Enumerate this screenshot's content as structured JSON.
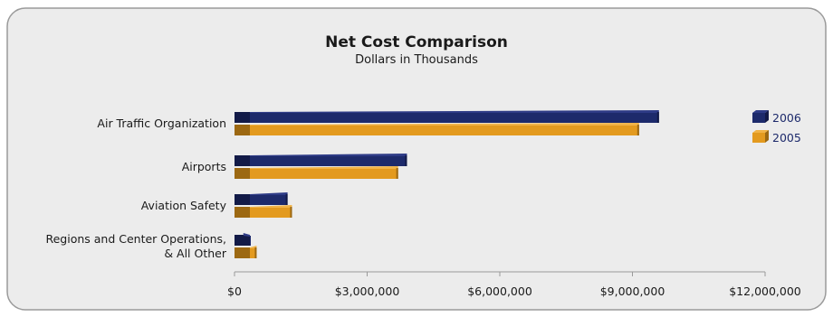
{
  "chart_data": {
    "type": "bar",
    "orientation": "horizontal",
    "title": "Net Cost Comparison",
    "subtitle": "Dollars in Thousands",
    "categories": [
      [
        "Air Traffic Organization"
      ],
      [
        "Airports"
      ],
      [
        "Aviation Safety"
      ],
      [
        "Regions and Center Operations,",
        "& All Other"
      ]
    ],
    "series": [
      {
        "name": "2006",
        "values": [
          9600000,
          3900000,
          1200000,
          200000
        ],
        "color": "#1d2a6b"
      },
      {
        "name": "2005",
        "values": [
          9150000,
          3700000,
          1300000,
          500000
        ],
        "color": "#e39a1f"
      }
    ],
    "xlim": [
      0,
      12000000
    ],
    "ticks": [
      0,
      3000000,
      6000000,
      9000000,
      12000000
    ],
    "tick_labels": [
      "$0",
      "$3,000,000",
      "$6,000,000",
      "$9,000,000",
      "$12,000,000"
    ],
    "legend_position": "top-right",
    "grid": false
  },
  "colors": {
    "panel_bg": "#ececec",
    "panel_border": "#9a9a9a",
    "series_2006_dark": "#121a47",
    "series_2005_dark": "#9c6812"
  }
}
